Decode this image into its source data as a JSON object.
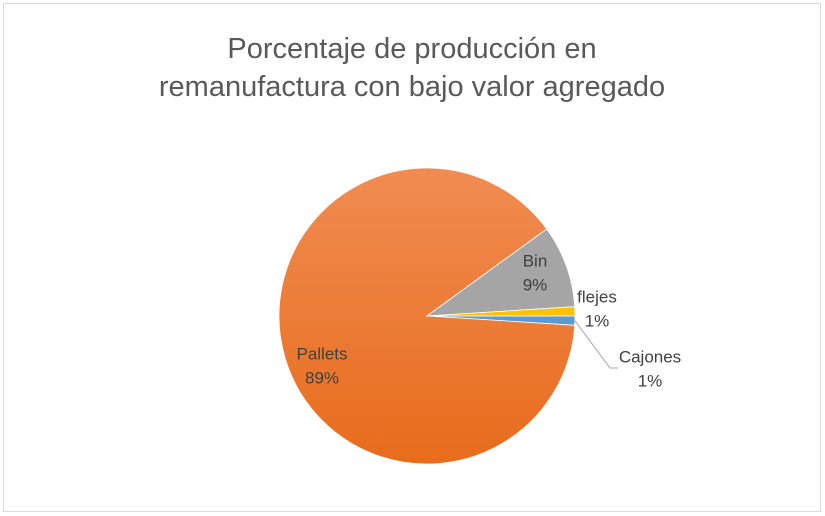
{
  "chart_data": {
    "type": "pie",
    "title": "Porcentaje de producción en remanufactura con bajo valor agregado",
    "categories": [
      "Cajones",
      "Pallets",
      "Bin",
      "flejes"
    ],
    "values": [
      1,
      89,
      9,
      1
    ],
    "value_labels": [
      "1%",
      "89%",
      "9%",
      "1%"
    ],
    "colors": [
      "#5b9bd5",
      "#ed7d31",
      "#a5a5a5",
      "#ffc000"
    ]
  }
}
